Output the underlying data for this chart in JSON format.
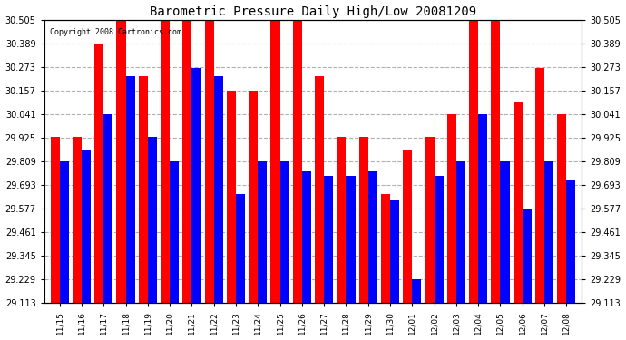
{
  "title": "Barometric Pressure Daily High/Low 20081209",
  "copyright": "Copyright 2008 Cartronics.com",
  "dates": [
    "11/15",
    "11/16",
    "11/17",
    "11/18",
    "11/19",
    "11/20",
    "11/21",
    "11/22",
    "11/23",
    "11/24",
    "11/25",
    "11/26",
    "11/27",
    "11/28",
    "11/29",
    "11/30",
    "12/01",
    "12/02",
    "12/03",
    "12/04",
    "12/05",
    "12/06",
    "12/07",
    "12/08"
  ],
  "highs": [
    29.93,
    29.93,
    30.39,
    30.5,
    30.23,
    30.5,
    30.5,
    30.5,
    30.16,
    30.16,
    30.5,
    30.5,
    30.23,
    29.93,
    29.93,
    29.65,
    29.87,
    29.93,
    30.04,
    30.5,
    30.5,
    30.1,
    30.27,
    30.04
  ],
  "lows": [
    29.81,
    29.87,
    30.04,
    30.23,
    29.93,
    29.81,
    30.27,
    30.23,
    29.65,
    29.81,
    29.81,
    29.76,
    29.74,
    29.74,
    29.76,
    29.62,
    29.23,
    29.74,
    29.81,
    30.04,
    29.81,
    29.58,
    29.81,
    29.72
  ],
  "high_color": "#ff0000",
  "low_color": "#0000ff",
  "bg_color": "#ffffff",
  "grid_color": "#b0b0b0",
  "yticks": [
    29.113,
    29.229,
    29.345,
    29.461,
    29.577,
    29.693,
    29.809,
    29.925,
    30.041,
    30.157,
    30.273,
    30.389,
    30.505
  ],
  "ymin": 29.113,
  "ymax": 30.505,
  "bar_width": 0.42
}
